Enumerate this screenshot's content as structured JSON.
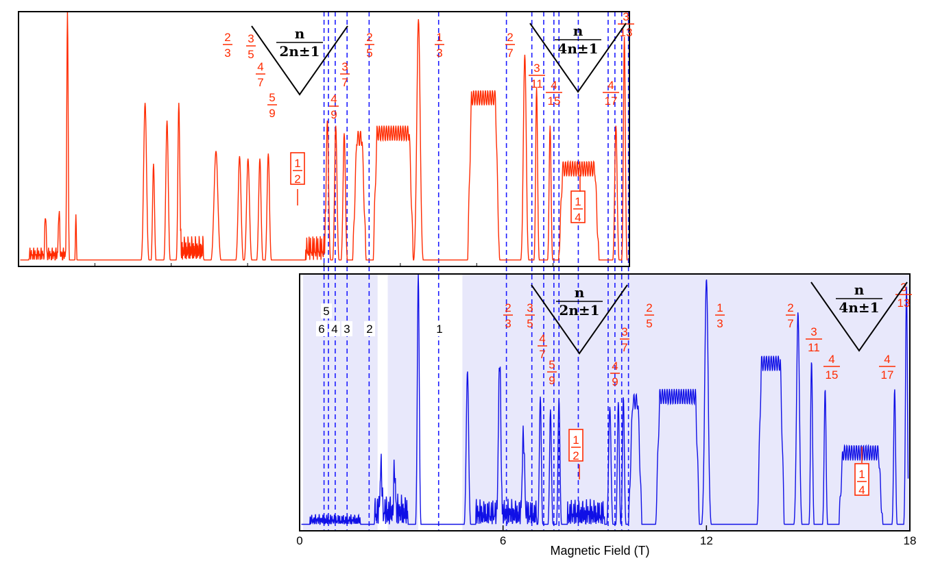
{
  "chart_data": {
    "type": "line",
    "title": "",
    "xlabel": "Magnetic Field (T)",
    "ylabel": "",
    "xlim": [
      0,
      18
    ],
    "x_ticks": [
      "0",
      "6",
      "12",
      "18"
    ],
    "grid": false,
    "colors": {
      "top": "#ff2a00",
      "bottom": "#1010e6",
      "label": "#ff2a00",
      "dashed": "#1a1aff",
      "shade": "#e8e8fb"
    },
    "panels": [
      {
        "name": "top",
        "series": [
          {
            "color": "#ff2a00",
            "shape": "x/y magnetoresistance trace with sharp peaks and flat minima at fractional filling"
          }
        ],
        "triangles": [
          {
            "num": "n",
            "den": "2n±1",
            "center_x": 0.0
          },
          {
            "num": "n",
            "den": "4n±1",
            "center_x": 8.22
          }
        ],
        "fractions": [
          {
            "n": "2",
            "d": "3",
            "x": -6.0
          },
          {
            "n": "3",
            "d": "5",
            "x": -5.5
          },
          {
            "n": "4",
            "d": "7",
            "x": -5.2
          },
          {
            "n": "5",
            "d": "9",
            "x": -4.9
          },
          {
            "n": "4",
            "d": "9",
            "x": 1.0
          },
          {
            "n": "3",
            "d": "7",
            "x": 1.4
          },
          {
            "n": "2",
            "d": "5",
            "x": 2.1
          },
          {
            "n": "1",
            "d": "3",
            "x": 4.2
          },
          {
            "n": "2",
            "d": "7",
            "x": 6.25
          },
          {
            "n": "3",
            "d": "11",
            "x": 7.0
          },
          {
            "n": "4",
            "d": "15",
            "x": 7.45
          },
          {
            "n": "4",
            "d": "17",
            "x": 9.2
          },
          {
            "n": "3",
            "d": "13",
            "x": 9.6
          }
        ],
        "boxed": [
          {
            "n": "1",
            "d": "2",
            "x": 0.0
          },
          {
            "n": "1",
            "d": "4",
            "x": 8.22
          }
        ]
      },
      {
        "name": "bottom",
        "series": [
          {
            "color": "#1010e6",
            "shape": "same trace plotted on 0-18 T field axis"
          }
        ],
        "integers": [
          {
            "text": "6",
            "x": 0.7
          },
          {
            "text": "5",
            "x": 0.83
          },
          {
            "text": "4",
            "x": 1.05
          },
          {
            "text": "3",
            "x": 1.4
          },
          {
            "text": "2",
            "x": 2.05
          },
          {
            "text": "1",
            "x": 4.1
          }
        ],
        "triangles": [
          {
            "num": "n",
            "den": "2n±1",
            "center_x": 8.22
          },
          {
            "num": "n",
            "den": "4n±1",
            "center_x": 16.45
          }
        ],
        "fractions": [
          {
            "n": "2",
            "d": "3",
            "x": 6.1
          },
          {
            "n": "3",
            "d": "5",
            "x": 6.85
          },
          {
            "n": "4",
            "d": "7",
            "x": 7.1
          },
          {
            "n": "5",
            "d": "9",
            "x": 7.4
          },
          {
            "n": "4",
            "d": "9",
            "x": 9.2
          },
          {
            "n": "3",
            "d": "7",
            "x": 9.6
          },
          {
            "n": "2",
            "d": "5",
            "x": 10.4
          },
          {
            "n": "1",
            "d": "3",
            "x": 12.6
          },
          {
            "n": "2",
            "d": "7",
            "x": 14.5
          },
          {
            "n": "3",
            "d": "11",
            "x": 15.1
          },
          {
            "n": "4",
            "d": "15",
            "x": 15.8
          },
          {
            "n": "4",
            "d": "17",
            "x": 17.4
          },
          {
            "n": "3",
            "d": "13",
            "x": 17.9
          }
        ],
        "boxed": [
          {
            "n": "1",
            "d": "2",
            "x": 8.1
          },
          {
            "n": "1",
            "d": "4",
            "x": 16.35
          }
        ]
      }
    ],
    "dashed_x": [
      0.72,
      0.85,
      1.05,
      1.4,
      2.05,
      4.1,
      6.1,
      6.85,
      7.2,
      7.5,
      7.65,
      8.22,
      9.1,
      9.3,
      9.5,
      9.7
    ]
  }
}
